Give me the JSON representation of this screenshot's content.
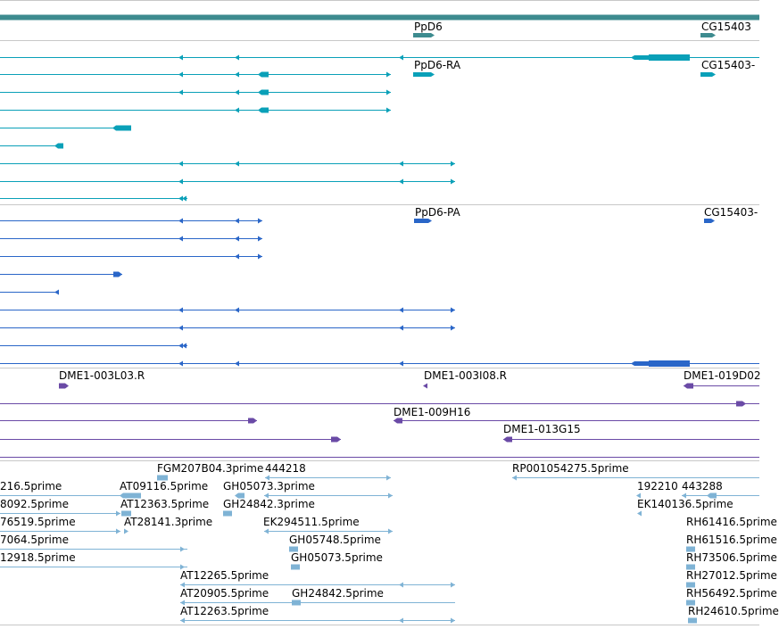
{
  "colors": {
    "gene": "#3d8b8f",
    "cdna": "#0aa0b8",
    "protein": "#2a66c8",
    "clone": "#6a4aa6",
    "est": "#7fb3d5",
    "divider": "#c8c8c8"
  },
  "tracks": {
    "genes": {
      "labels": [
        "PpD6",
        "CG15403"
      ]
    },
    "transcripts": {
      "labels": [
        "PpD6-RA",
        "CG15403-"
      ]
    },
    "proteins": {
      "labels": [
        "PpD6-PA",
        "CG15403-"
      ]
    },
    "clones": {
      "labels": [
        "DME1-003L03.R",
        "DME1-003I08.R",
        "DME1-019D02",
        "DME1-009H16",
        "DME1-013G15"
      ]
    },
    "ests": {
      "labels": [
        "FGM207B04.3prime",
        "444218",
        "RP001054275.5prime",
        "216.5prime",
        "AT09116.5prime",
        "GH05073.3prime",
        "192210",
        "443288",
        "8092.5prime",
        "AT12363.5prime",
        "GH24842.3prime",
        "EK140136.5prime",
        "76519.5prime",
        "AT28141.3prime",
        "EK294511.5prime",
        "RH61416.5prime",
        "7064.5prime",
        "GH05748.5prime",
        "RH61516.5prime",
        "12918.5prime",
        "GH05073.5prime",
        "RH73506.5prime",
        "AT12265.5prime",
        "RH27012.5prime",
        "AT20905.5prime",
        "GH24842.5prime",
        "RH56492.5prime",
        "AT12263.5prime",
        "RH24610.5prime"
      ]
    }
  }
}
